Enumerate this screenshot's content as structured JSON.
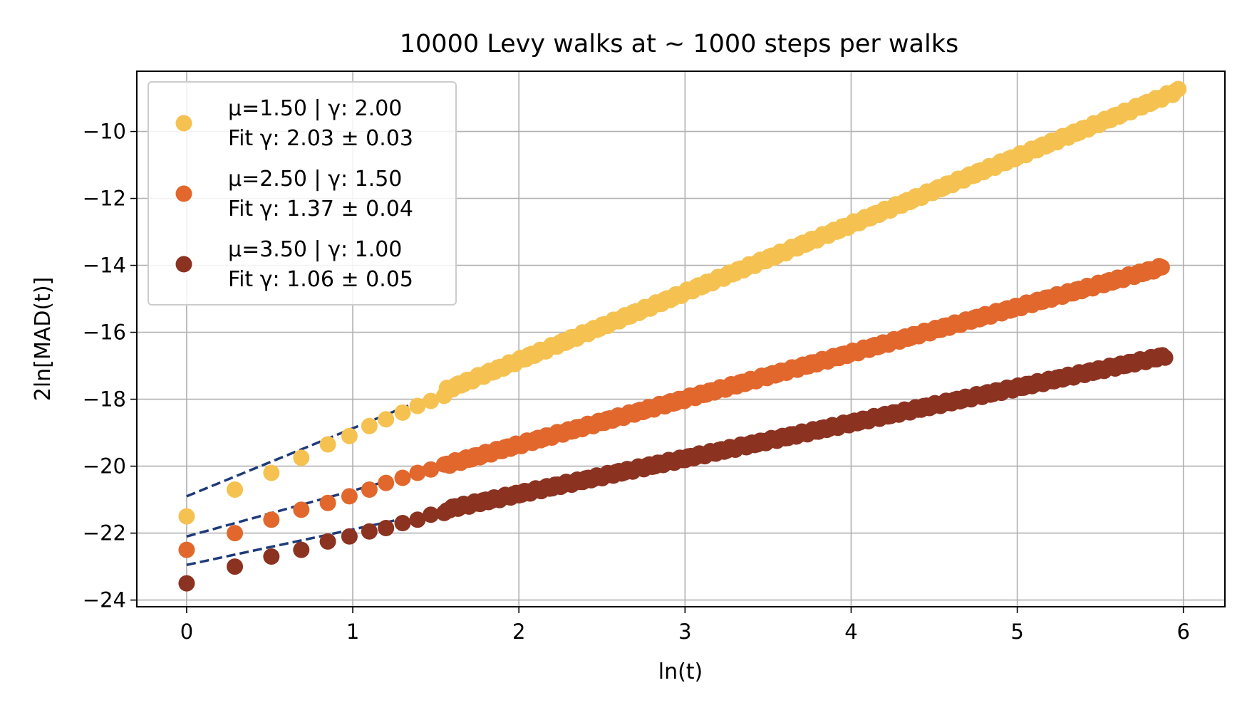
{
  "chart_data": {
    "type": "scatter",
    "title": "10000 Levy walks at ~ 1000 steps per walks",
    "xlabel": "ln(t)",
    "ylabel": "2ln[MAD(t)]",
    "xlim": [
      -0.3,
      6.25
    ],
    "ylim": [
      -24.2,
      -8.2
    ],
    "xticks": [
      0,
      1,
      2,
      3,
      4,
      5,
      6
    ],
    "yticks": [
      -24,
      -22,
      -20,
      -18,
      -16,
      -14,
      -12,
      -10
    ],
    "grid": true,
    "legend_position": "upper-left",
    "fit_line_color": "#1f3a7a",
    "series": [
      {
        "name": "μ=1.50 | γ: 2.00",
        "fit_label": "Fit γ: 2.03 ± 0.03",
        "color": "#f5c251",
        "x_end": 5.97,
        "points_early": [
          [
            0.0,
            -21.5
          ],
          [
            0.29,
            -20.7
          ],
          [
            0.51,
            -20.2
          ],
          [
            0.69,
            -19.75
          ],
          [
            0.85,
            -19.35
          ],
          [
            0.98,
            -19.1
          ],
          [
            1.1,
            -18.8
          ],
          [
            1.2,
            -18.6
          ],
          [
            1.3,
            -18.4
          ],
          [
            1.39,
            -18.2
          ],
          [
            1.47,
            -18.05
          ],
          [
            1.55,
            -17.9
          ]
        ],
        "fit": {
          "slope": 2.03,
          "intercept": -20.9,
          "x_range": [
            0.0,
            5.97
          ]
        }
      },
      {
        "name": "μ=2.50 | γ: 1.50",
        "fit_label": "Fit γ: 1.37 ± 0.04",
        "color": "#e2672c",
        "x_end": 5.87,
        "points_early": [
          [
            0.0,
            -22.5
          ],
          [
            0.29,
            -22.0
          ],
          [
            0.51,
            -21.6
          ],
          [
            0.69,
            -21.3
          ],
          [
            0.85,
            -21.1
          ],
          [
            0.98,
            -20.9
          ],
          [
            1.1,
            -20.7
          ],
          [
            1.2,
            -20.5
          ],
          [
            1.3,
            -20.35
          ],
          [
            1.39,
            -20.2
          ],
          [
            1.47,
            -20.1
          ],
          [
            1.55,
            -19.95
          ]
        ],
        "fit": {
          "slope": 1.37,
          "intercept": -22.1,
          "x_range": [
            0.0,
            5.87
          ]
        }
      },
      {
        "name": "μ=3.50 | γ: 1.00",
        "fit_label": "Fit γ: 1.06 ± 0.05",
        "color": "#8c3220",
        "x_end": 5.89,
        "points_early": [
          [
            0.0,
            -23.5
          ],
          [
            0.29,
            -23.0
          ],
          [
            0.51,
            -22.7
          ],
          [
            0.69,
            -22.5
          ],
          [
            0.85,
            -22.25
          ],
          [
            0.98,
            -22.1
          ],
          [
            1.1,
            -21.95
          ],
          [
            1.2,
            -21.85
          ],
          [
            1.3,
            -21.7
          ],
          [
            1.39,
            -21.6
          ],
          [
            1.47,
            -21.45
          ],
          [
            1.55,
            -21.4
          ]
        ],
        "fit": {
          "slope": 1.06,
          "intercept": -22.95,
          "x_range": [
            0.0,
            5.89
          ]
        }
      }
    ]
  }
}
